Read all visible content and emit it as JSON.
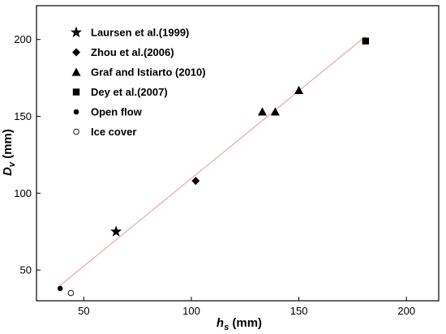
{
  "chart_data": {
    "type": "scatter",
    "title": "",
    "xlabel": {
      "main": "h",
      "sub": "s",
      "unit": " (mm)"
    },
    "ylabel": {
      "main": "D",
      "sub": "v",
      "unit": " (mm)"
    },
    "xlim": [
      28,
      215
    ],
    "ylim": [
      30,
      222
    ],
    "xticks": [
      50,
      100,
      150,
      200
    ],
    "yticks": [
      50,
      100,
      150,
      200
    ],
    "grid": false,
    "legend_position": "top-left",
    "series": [
      {
        "name": "Laursen et al.(1999)",
        "marker": "star",
        "points": [
          [
            65,
            75
          ]
        ]
      },
      {
        "name": "Zhou et al.(2006)",
        "marker": "diamond",
        "points": [
          [
            102,
            108
          ]
        ]
      },
      {
        "name": "Graf and Istiarto (2010)",
        "marker": "triangle",
        "points": [
          [
            133,
            153
          ],
          [
            139,
            153
          ],
          [
            150,
            167
          ]
        ]
      },
      {
        "name": "Dey et al.(2007)",
        "marker": "square",
        "points": [
          [
            181,
            199
          ]
        ]
      },
      {
        "name": "Open flow",
        "marker": "circle-filled",
        "points": [
          [
            39,
            38
          ]
        ]
      },
      {
        "name": "Ice cover",
        "marker": "circle-open",
        "points": [
          [
            44,
            35
          ]
        ]
      }
    ],
    "fit_line": {
      "from": [
        39,
        40
      ],
      "to": [
        181,
        202
      ],
      "color": "#e8a0a0"
    }
  }
}
